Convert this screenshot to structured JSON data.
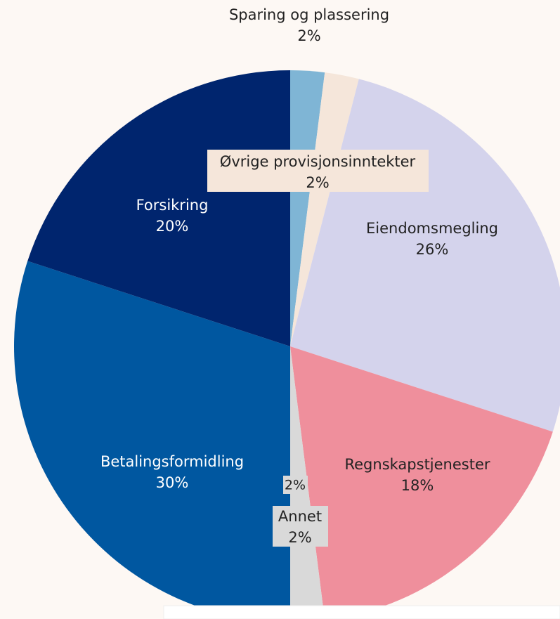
{
  "chart_data": {
    "type": "pie",
    "categories": [
      "Sparing og plassering",
      "Øvrige provisjonsinntekter",
      "Eiendomsmegling",
      "Regnskapstjenester",
      "Annet",
      "Betalingsformidling",
      "Forsikring"
    ],
    "values": [
      2,
      2,
      26,
      18,
      2,
      30,
      20
    ],
    "value_labels": [
      "2%",
      "2%",
      "26%",
      "18%",
      "2%",
      "30%",
      "20%"
    ],
    "colors": [
      "#7fb5d5",
      "#f5e6da",
      "#d4d3ec",
      "#ef8f9c",
      "#d9d9d9",
      "#0057a0",
      "#00256e"
    ],
    "annotations": [
      {
        "text": "2%"
      }
    ]
  }
}
